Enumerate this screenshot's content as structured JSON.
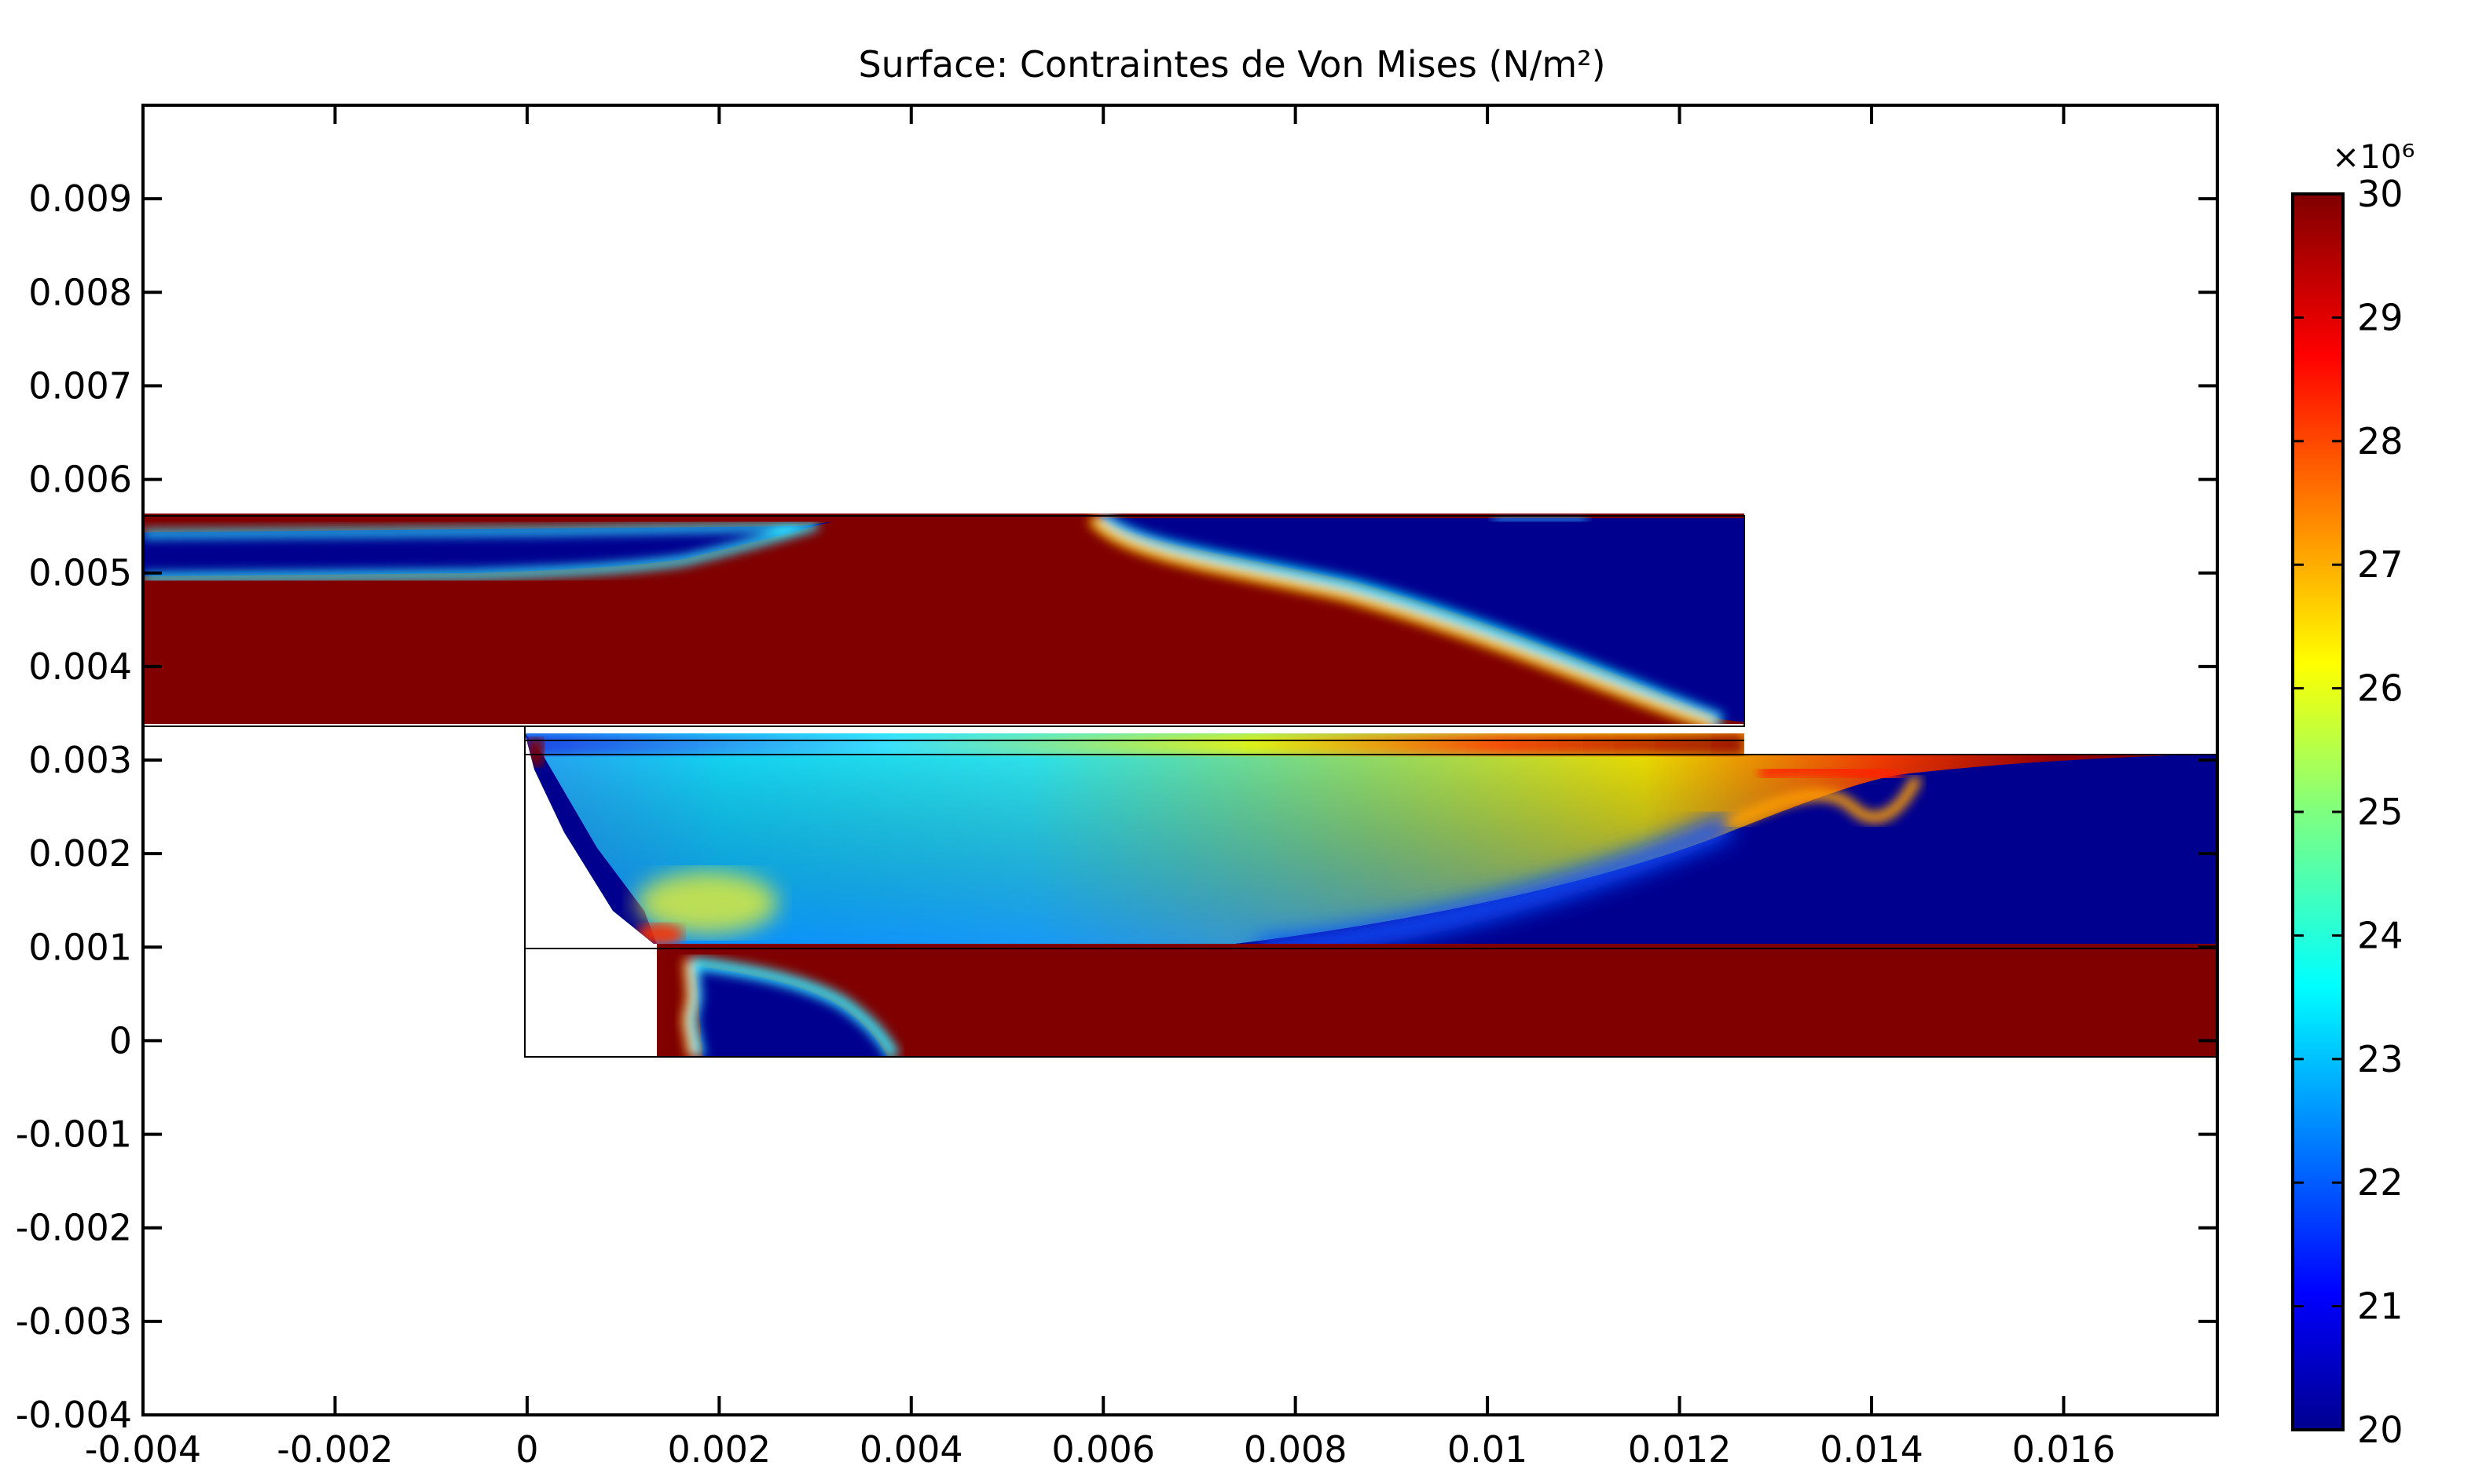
{
  "chart_data": {
    "type": "heatmap",
    "title": "Surface: Contraintes de Von Mises (N/m²)",
    "xlabel": "",
    "ylabel": "",
    "xlim": [
      -0.004,
      0.0176
    ],
    "ylim": [
      -0.004,
      0.01
    ],
    "xticks": [
      "-0.004",
      "-0.002",
      "0",
      "0.002",
      "0.004",
      "0.006",
      "0.008",
      "0.01",
      "0.012",
      "0.014",
      "0.016"
    ],
    "yticks": [
      "-0.004",
      "-0.003",
      "-0.002",
      "-0.001",
      "0",
      "0.001",
      "0.002",
      "0.003",
      "0.004",
      "0.005",
      "0.006",
      "0.007",
      "0.008",
      "0.009"
    ],
    "colorbar": {
      "multiplier": "×10⁶",
      "min": 20,
      "max": 30,
      "ticks": [
        "20",
        "21",
        "22",
        "23",
        "24",
        "25",
        "26",
        "27",
        "28",
        "29",
        "30"
      ],
      "colormap": "jet"
    },
    "grid": false,
    "domains": [
      {
        "name": "upper-plate",
        "x": [
          -0.004,
          0.0127
        ],
        "y": [
          0.0035,
          0.0057
        ]
      },
      {
        "name": "middle-layer",
        "x": [
          0.0,
          0.0176
        ],
        "y": [
          0.0012,
          0.0032
        ]
      },
      {
        "name": "lower-plate",
        "x": [
          0.0,
          0.0176
        ],
        "y": [
          0.0,
          0.0012
        ]
      }
    ],
    "colors": {
      "dark_red": "#800000",
      "dark_blue": "#00008f",
      "cyan": "#1fe5ff",
      "yellow": "#f4f400",
      "red": "#ff1c00"
    }
  }
}
